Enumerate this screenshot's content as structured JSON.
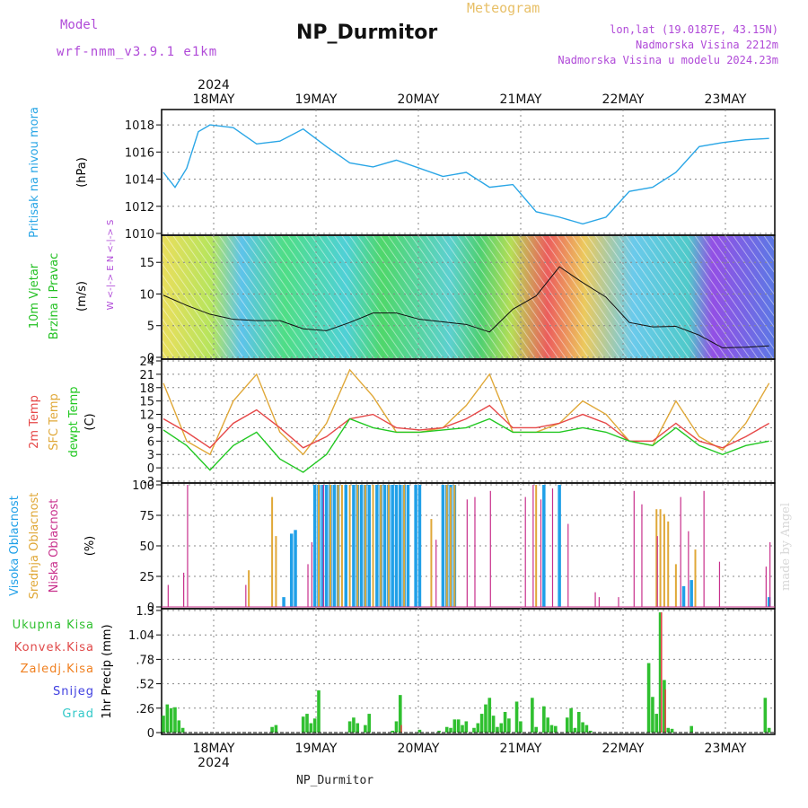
{
  "header": {
    "model_label": "Model",
    "model_name": "wrf-nmm_v3.9.1 e1km",
    "title": "NP_Durmitor",
    "meteogram": "Meteogram",
    "lonlat": "lon,lat (19.0187E, 43.15N)",
    "elevation": "Nadmorska Visina 2212m",
    "model_elevation": "Nadmorska Visina u modelu 2024.23m"
  },
  "footer_label": "NP_Durmitor",
  "watermark": "made by Angel",
  "colors": {
    "pressure": "#2aa6e6",
    "wind_green": "#22c022",
    "temp2m": "#e64848",
    "sfc": "#e0a838",
    "dew": "#22c822",
    "high": "#20a0e8",
    "mid": "#e0a838",
    "low": "#c8308c",
    "precip": "#30c030",
    "conv": "#e04848",
    "freeze": "#f08020",
    "snow": "#4040e0",
    "hail": "#30c8c8"
  },
  "x_axis": {
    "year": "2024",
    "days": [
      "18MAY",
      "19MAY",
      "20MAY",
      "21MAY",
      "22MAY",
      "23MAY"
    ]
  },
  "panels": {
    "pressure": {
      "label": "Pritisak na nivou mora",
      "unit": "(hPa)"
    },
    "wind": {
      "label1": "10m Vjetar",
      "label2": "Brzina i Pravac",
      "unit": "(m/s)",
      "compass": "W <-|-> E  N <-|-> S"
    },
    "temp": {
      "label1": "2m Temp",
      "label2": "SFC Temp",
      "label3": "dewpt Temp",
      "unit": "(C)"
    },
    "cloud": {
      "label1": "Visoka Oblacnost",
      "label2": "Srednja Oblacnost",
      "label3": "Niska Oblacnost",
      "unit": "(%)"
    },
    "precip": {
      "legend": [
        "Ukupna Kisa",
        "Konvek.Kisa",
        "Zaledj.Kisa",
        "Snijeg",
        "Grad"
      ],
      "unit": "1hr Precip (mm)"
    }
  },
  "chart_data": [
    {
      "type": "line",
      "title": "Pritisak na nivou mora",
      "ylabel": "(hPa)",
      "ylim": [
        1010,
        1019
      ],
      "yticks": [
        1010,
        1012,
        1014,
        1016,
        1018
      ],
      "x_hours": [
        0,
        3,
        6,
        9,
        12,
        18,
        24,
        30,
        36,
        42,
        48,
        54,
        60,
        66,
        72,
        78,
        84,
        90,
        96,
        102,
        108,
        114,
        120,
        126,
        132,
        138,
        144,
        150,
        156
      ],
      "series": [
        {
          "values": [
            1014.5,
            1013.4,
            1014.8,
            1017.5,
            1018.0,
            1017.8,
            1016.6,
            1016.8,
            1017.7,
            1016.4,
            1015.2,
            1014.9,
            1015.4,
            1014.8,
            1014.2,
            1014.5,
            1013.4,
            1013.6,
            1011.6,
            1011.2,
            1010.7,
            1011.2,
            1013.1,
            1013.4,
            1014.5,
            1016.4,
            1016.7,
            1016.9,
            1017.0
          ]
        }
      ]
    },
    {
      "type": "line",
      "title": "10m Vjetar Brzina i Pravac",
      "ylabel": "(m/s)",
      "ylim": [
        0,
        19
      ],
      "yticks": [
        0,
        5,
        10,
        15
      ],
      "x_hours": [
        0,
        6,
        12,
        18,
        24,
        30,
        36,
        42,
        48,
        54,
        60,
        66,
        72,
        78,
        84,
        90,
        96,
        102,
        108,
        114,
        120,
        126,
        132,
        138,
        144,
        150,
        156
      ],
      "series": [
        {
          "values": [
            9.8,
            8.2,
            6.8,
            6.0,
            5.8,
            5.8,
            4.5,
            4.2,
            5.5,
            7.0,
            7.0,
            6.0,
            5.6,
            5.2,
            4.0,
            7.6,
            9.7,
            14.3,
            11.8,
            9.5,
            5.5,
            4.8,
            4.9,
            3.5,
            1.5,
            1.6,
            1.8
          ]
        }
      ]
    },
    {
      "type": "line",
      "title": "Temp",
      "ylabel": "(C)",
      "ylim": [
        -3,
        24
      ],
      "yticks": [
        -3,
        0,
        3,
        6,
        9,
        12,
        15,
        18,
        21,
        24
      ],
      "x_hours": [
        0,
        6,
        12,
        18,
        24,
        30,
        36,
        42,
        48,
        54,
        60,
        66,
        72,
        78,
        84,
        90,
        96,
        102,
        108,
        114,
        120,
        126,
        132,
        138,
        144,
        150,
        156
      ],
      "series": [
        {
          "name": "2m Temp",
          "values": [
            11,
            8,
            4.5,
            10,
            13,
            9,
            4.5,
            7,
            11,
            12,
            9,
            8.5,
            9,
            11,
            14,
            9,
            9,
            10,
            12,
            10,
            6,
            6,
            10,
            6,
            4.5,
            7,
            10
          ]
        },
        {
          "name": "SFC Temp",
          "values": [
            19,
            6,
            3,
            15,
            21,
            8,
            3,
            10,
            22,
            16,
            8,
            8,
            9,
            14,
            21,
            8,
            8,
            10,
            15,
            12,
            6,
            5,
            15,
            7,
            4,
            10,
            19
          ]
        },
        {
          "name": "dewpt Temp",
          "values": [
            8.5,
            5,
            -0.5,
            5,
            8,
            2,
            -1,
            3,
            11,
            9,
            8,
            8,
            8.5,
            9,
            11,
            8,
            8,
            8,
            9,
            8,
            6,
            5,
            9,
            5,
            3,
            5,
            6
          ]
        }
      ]
    },
    {
      "type": "bar",
      "title": "Oblacnost",
      "ylabel": "(%)",
      "ylim": [
        0,
        100
      ],
      "yticks": [
        0,
        25,
        50,
        75,
        100
      ],
      "series": [
        {
          "name": "Visoka Oblacnost",
          "bars": [
            [
              31,
              8
            ],
            [
              33,
              60
            ],
            [
              34,
              63
            ],
            [
              39,
              100
            ],
            [
              40,
              100
            ],
            [
              41,
              100
            ],
            [
              42,
              100
            ],
            [
              43,
              100
            ],
            [
              44,
              100
            ],
            [
              45,
              100
            ],
            [
              47,
              100
            ],
            [
              49,
              100
            ],
            [
              50,
              100
            ],
            [
              51,
              100
            ],
            [
              52,
              100
            ],
            [
              53,
              100
            ],
            [
              55,
              100
            ],
            [
              56,
              100
            ],
            [
              57,
              100
            ],
            [
              58,
              100
            ],
            [
              59,
              100
            ],
            [
              60,
              100
            ],
            [
              61,
              100
            ],
            [
              62,
              100
            ],
            [
              63,
              100
            ],
            [
              65,
              100
            ],
            [
              66,
              100
            ],
            [
              72,
              100
            ],
            [
              73,
              100
            ],
            [
              74,
              100
            ],
            [
              75,
              100
            ],
            [
              98,
              100
            ],
            [
              102,
              100
            ],
            [
              134,
              17
            ],
            [
              136,
              22
            ],
            [
              156,
              8
            ]
          ]
        },
        {
          "name": "Srednja Oblacnost",
          "bars": [
            [
              22,
              30
            ],
            [
              28,
              90
            ],
            [
              29,
              58
            ],
            [
              40,
              100
            ],
            [
              43,
              100
            ],
            [
              45,
              100
            ],
            [
              46,
              100
            ],
            [
              48,
              100
            ],
            [
              50,
              100
            ],
            [
              52,
              100
            ],
            [
              54,
              100
            ],
            [
              56,
              100
            ],
            [
              58,
              100
            ],
            [
              62,
              100
            ],
            [
              69,
              72
            ],
            [
              73,
              100
            ],
            [
              74,
              98
            ],
            [
              75,
              100
            ],
            [
              96,
              100
            ],
            [
              127,
              80
            ],
            [
              128,
              80
            ],
            [
              129,
              76
            ],
            [
              130,
              70
            ],
            [
              132,
              35
            ],
            [
              137,
              47
            ]
          ]
        },
        {
          "name": "Niska Oblacnost",
          "bars": [
            [
              1,
              18
            ],
            [
              5,
              28
            ],
            [
              6,
              100
            ],
            [
              21,
              18
            ],
            [
              37,
              35
            ],
            [
              38,
              53
            ],
            [
              41,
              100
            ],
            [
              70,
              55
            ],
            [
              78,
              88
            ],
            [
              80,
              90
            ],
            [
              84,
              95
            ],
            [
              93,
              90
            ],
            [
              95,
              100
            ],
            [
              97,
              88
            ],
            [
              100,
              97
            ],
            [
              104,
              68
            ],
            [
              111,
              12
            ],
            [
              112,
              8
            ],
            [
              117,
              8
            ],
            [
              121,
              95
            ],
            [
              123,
              84
            ],
            [
              127,
              58
            ],
            [
              133,
              90
            ],
            [
              135,
              62
            ],
            [
              139,
              95
            ],
            [
              143,
              37
            ],
            [
              155,
              33
            ],
            [
              156,
              53
            ]
          ]
        }
      ]
    },
    {
      "type": "bar",
      "title": "1hr Precip",
      "ylabel": "1hr Precip (mm)",
      "ylim": [
        0,
        1.3
      ],
      "yticks": [
        0,
        0.26,
        0.52,
        0.78,
        1.04,
        1.3
      ],
      "series": [
        {
          "name": "Ukupna Kisa",
          "bars": [
            [
              0,
              0.18
            ],
            [
              1,
              0.3
            ],
            [
              2,
              0.26
            ],
            [
              3,
              0.27
            ],
            [
              4,
              0.13
            ],
            [
              5,
              0.05
            ],
            [
              28,
              0.06
            ],
            [
              29,
              0.08
            ],
            [
              36,
              0.17
            ],
            [
              37,
              0.2
            ],
            [
              38,
              0.1
            ],
            [
              39,
              0.15
            ],
            [
              40,
              0.45
            ],
            [
              48,
              0.12
            ],
            [
              49,
              0.16
            ],
            [
              50,
              0.1
            ],
            [
              52,
              0.08
            ],
            [
              53,
              0.2
            ],
            [
              59,
              0.02
            ],
            [
              60,
              0.12
            ],
            [
              61,
              0.4
            ],
            [
              66,
              0.03
            ],
            [
              71,
              0.02
            ],
            [
              73,
              0.06
            ],
            [
              74,
              0.05
            ],
            [
              75,
              0.14
            ],
            [
              76,
              0.14
            ],
            [
              77,
              0.08
            ],
            [
              78,
              0.12
            ],
            [
              80,
              0.05
            ],
            [
              81,
              0.1
            ],
            [
              82,
              0.2
            ],
            [
              83,
              0.3
            ],
            [
              84,
              0.37
            ],
            [
              85,
              0.18
            ],
            [
              86,
              0.06
            ],
            [
              87,
              0.1
            ],
            [
              88,
              0.22
            ],
            [
              89,
              0.15
            ],
            [
              91,
              0.33
            ],
            [
              92,
              0.12
            ],
            [
              95,
              0.37
            ],
            [
              96,
              0.06
            ],
            [
              98,
              0.28
            ],
            [
              99,
              0.16
            ],
            [
              100,
              0.08
            ],
            [
              101,
              0.07
            ],
            [
              104,
              0.16
            ],
            [
              105,
              0.26
            ],
            [
              106,
              0.05
            ],
            [
              107,
              0.22
            ],
            [
              108,
              0.11
            ],
            [
              109,
              0.08
            ],
            [
              110,
              0.02
            ],
            [
              125,
              0.74
            ],
            [
              126,
              0.38
            ],
            [
              127,
              0.2
            ],
            [
              128,
              1.28
            ],
            [
              129,
              0.56
            ],
            [
              130,
              0.05
            ],
            [
              131,
              0.04
            ],
            [
              136,
              0.07
            ],
            [
              155,
              0.37
            ],
            [
              156,
              0.05
            ]
          ]
        },
        {
          "name": "Konvek.Kisa",
          "bars": [
            [
              128,
              1.28
            ],
            [
              129,
              0.46
            ],
            [
              61,
              0.08
            ]
          ]
        }
      ]
    }
  ]
}
